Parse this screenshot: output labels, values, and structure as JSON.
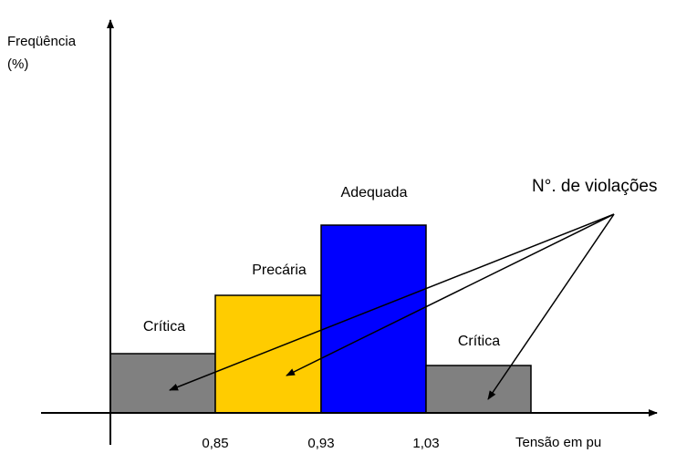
{
  "y_axis": {
    "title_line1": "Freqüência",
    "title_line2": "(%)"
  },
  "x_axis": {
    "title": "Tensão em pu",
    "ticks": [
      "0,85",
      "0,93",
      "1,03"
    ]
  },
  "annotation": "N°. de violações",
  "bars": [
    {
      "label": "Crítica",
      "color": "#808080",
      "relative_height": 0.22
    },
    {
      "label": "Precária",
      "color": "#FFCC00",
      "relative_height": 0.48
    },
    {
      "label": "Adequada",
      "color": "#0000FF",
      "relative_height": 0.77
    },
    {
      "label": "Crítica",
      "color": "#808080",
      "relative_height": 0.16
    }
  ]
}
